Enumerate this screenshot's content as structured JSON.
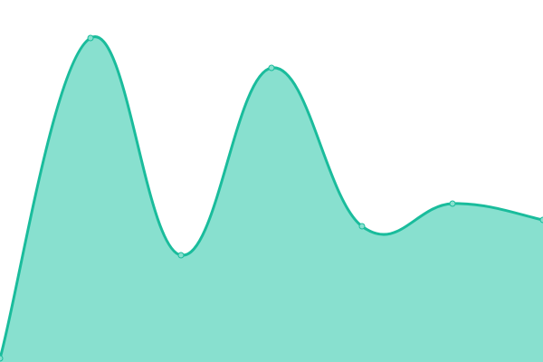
{
  "chart_data": {
    "type": "area",
    "smooth": true,
    "x": [
      0,
      1,
      2,
      3,
      4,
      5,
      6
    ],
    "series": [
      {
        "values": [
          4,
          358,
          118,
          325,
          150,
          175,
          157
        ]
      }
    ],
    "ylim": [
      0,
      400
    ],
    "xlim": [
      0,
      6
    ],
    "grid": false,
    "axes_visible": false,
    "colors": {
      "line": "#1abc9c",
      "fill": "#88e0cf",
      "point_fill": "#88e0cf"
    }
  }
}
